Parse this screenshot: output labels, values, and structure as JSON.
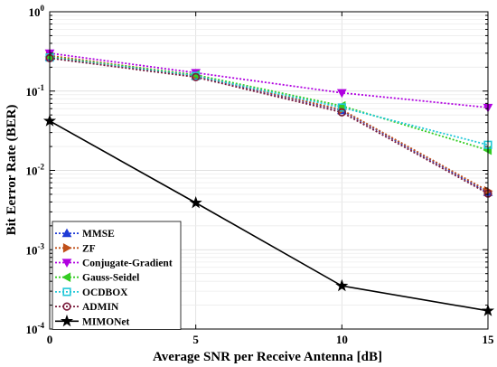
{
  "chart_data": {
    "type": "line",
    "xlabel": "Average SNR per Receive Antenna [dB]",
    "ylabel": "Bit Eerror Rate (BER)",
    "x": [
      0,
      5,
      10,
      15
    ],
    "x_ticks": [
      "0",
      "5",
      "10",
      "15"
    ],
    "xlim": [
      0,
      15
    ],
    "y_scale": "log",
    "ylim": [
      0.0001,
      1
    ],
    "y_tick_values": [
      1,
      0.1,
      0.01,
      0.001,
      0.0001
    ],
    "y_ticks": [
      {
        "base": "10",
        "exp": "0"
      },
      {
        "base": "10",
        "exp": "-1"
      },
      {
        "base": "10",
        "exp": "-2"
      },
      {
        "base": "10",
        "exp": "-3"
      },
      {
        "base": "10",
        "exp": "-4"
      }
    ],
    "grid": true,
    "legend_position": "bottom-left",
    "series": [
      {
        "name": "MMSE",
        "color": "#1f3bd6",
        "marker": "triangle-up",
        "dash": "dotted",
        "values": [
          0.27,
          0.155,
          0.057,
          0.0053
        ]
      },
      {
        "name": "ZF",
        "color": "#c0501a",
        "marker": "triangle-right",
        "dash": "dotted",
        "values": [
          0.28,
          0.158,
          0.058,
          0.0055
        ]
      },
      {
        "name": "Conjugate-Gradient",
        "color": "#b000e0",
        "marker": "triangle-down",
        "dash": "dotted",
        "values": [
          0.3,
          0.17,
          0.095,
          0.062
        ]
      },
      {
        "name": "Gauss-Seidel",
        "color": "#33cc22",
        "marker": "triangle-left",
        "dash": "dotted",
        "values": [
          0.27,
          0.16,
          0.065,
          0.018
        ]
      },
      {
        "name": "OCDBOX",
        "color": "#22c8d8",
        "marker": "square",
        "dash": "dotted",
        "values": [
          0.265,
          0.155,
          0.062,
          0.021
        ]
      },
      {
        "name": "ADMIN",
        "color": "#7a1a3a",
        "marker": "circle",
        "dash": "dotted",
        "values": [
          0.26,
          0.15,
          0.054,
          0.0051
        ]
      },
      {
        "name": "MIMONet",
        "color": "#000000",
        "marker": "star",
        "dash": "solid",
        "values": [
          0.042,
          0.0039,
          0.00035,
          0.00017
        ]
      }
    ]
  }
}
